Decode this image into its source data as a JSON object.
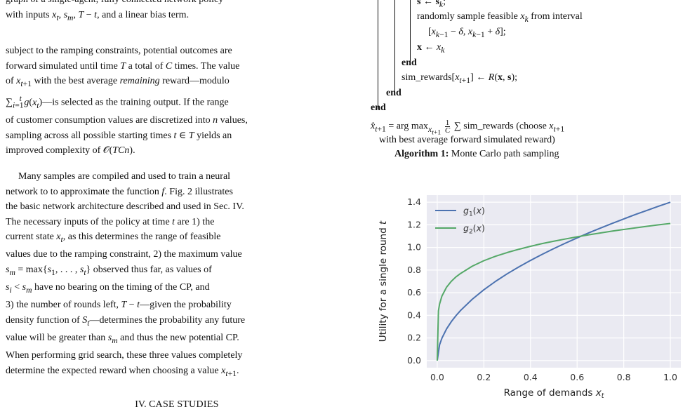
{
  "left_column": {
    "top_fragment_1": "graph of a single-agent, fully connected network policy",
    "top_fragment_2": "with inputs x_t, s_m, T − t, and a linear bias term.",
    "para1": [
      "subject to the ramping constraints, potential outcomes are",
      "forward simulated until time T a total of C times. The value",
      "of x_{t+1} with the best average remaining reward—modulo",
      "Σ_{i=1}^{t} g(x_t)—is selected as the training output. If the range",
      "of customer consumption values are discretized into n values,",
      "sampling across all possible starting times t ∈ T yields an",
      "improved complexity of O(TCn)."
    ],
    "para2": [
      "Many samples are compiled and used to train a neural",
      "network to to approximate the function f. Fig. 2 illustrates",
      "the basic network architecture described and used in Sec. IV.",
      "The necessary inputs of the policy at time t are 1) the",
      "current state x_t, as this determines the range of feasible",
      "values due to the ramping constraint, 2) the maximum value",
      "s_m = max{s_1, . . . , s_t} observed thus far, as values of",
      "s_i < s_m have no bearing on the timing of the CP, and",
      "3) the number of rounds left, T − t—given the probability",
      "density function of S_t—determines the probability any future",
      "value will be greater than s_m and thus the new potential CP.",
      "When performing grid search, these three values completely",
      "determine the expected reward when choosing a value x_{t+1}."
    ],
    "section_heading": "IV. Case Studies"
  },
  "algorithm": {
    "line_s": "s ← s_k;",
    "line_sample": "randomly sample feasible x_k from interval",
    "line_interval": "[x_{k−1} − δ, x_{k−1} + δ];",
    "line_x": "x ← x_k",
    "end_label": "end",
    "line_sim": "sim_rewards[x_{t+1}] ← R(x, s);",
    "line_argmax": "x̂_{t+1} = arg max_{x_{t+1}} (1/C) Σ sim_rewards (choose x_{t+1}",
    "line_argmax_cont": "with best average forward simulated reward)",
    "caption_label": "Algorithm 1:",
    "caption_text": "Monte Carlo path sampling"
  },
  "chart_data": {
    "type": "line",
    "xlabel": "Range of demands x_t",
    "ylabel": "Utility for a single round t",
    "xlim": [
      0.0,
      1.0
    ],
    "ylim": [
      0.0,
      1.4
    ],
    "x_ticks": [
      "0.0",
      "0.2",
      "0.4",
      "0.6",
      "0.8",
      "1.0"
    ],
    "y_ticks": [
      "0.0",
      "0.2",
      "0.4",
      "0.6",
      "0.8",
      "1.0",
      "1.2",
      "1.4"
    ],
    "grid": true,
    "legend_position": "top-left",
    "series": [
      {
        "name": "g1(x)",
        "color": "#4c72b0",
        "x": [
          0.0,
          0.01,
          0.02,
          0.04,
          0.06,
          0.08,
          0.1,
          0.15,
          0.2,
          0.25,
          0.3,
          0.35,
          0.4,
          0.45,
          0.5,
          0.55,
          0.6,
          0.65,
          0.7,
          0.75,
          0.8,
          0.85,
          0.9,
          0.95,
          1.0
        ],
        "y": [
          0.0,
          0.14,
          0.198,
          0.28,
          0.343,
          0.396,
          0.443,
          0.542,
          0.626,
          0.7,
          0.767,
          0.828,
          0.885,
          0.939,
          0.99,
          1.038,
          1.084,
          1.129,
          1.171,
          1.212,
          1.252,
          1.291,
          1.328,
          1.365,
          1.4
        ]
      },
      {
        "name": "g2(x)",
        "color": "#55a868",
        "x": [
          0.0,
          0.005,
          0.01,
          0.02,
          0.04,
          0.06,
          0.08,
          0.1,
          0.15,
          0.2,
          0.25,
          0.3,
          0.35,
          0.4,
          0.45,
          0.5,
          0.55,
          0.6,
          0.65,
          0.7,
          0.75,
          0.8,
          0.85,
          0.9,
          0.95,
          1.0
        ],
        "y": [
          0.0,
          0.439,
          0.5,
          0.57,
          0.649,
          0.7,
          0.739,
          0.77,
          0.834,
          0.883,
          0.922,
          0.955,
          0.984,
          1.01,
          1.034,
          1.055,
          1.075,
          1.094,
          1.112,
          1.128,
          1.144,
          1.159,
          1.173,
          1.187,
          1.2,
          1.212
        ]
      }
    ]
  }
}
